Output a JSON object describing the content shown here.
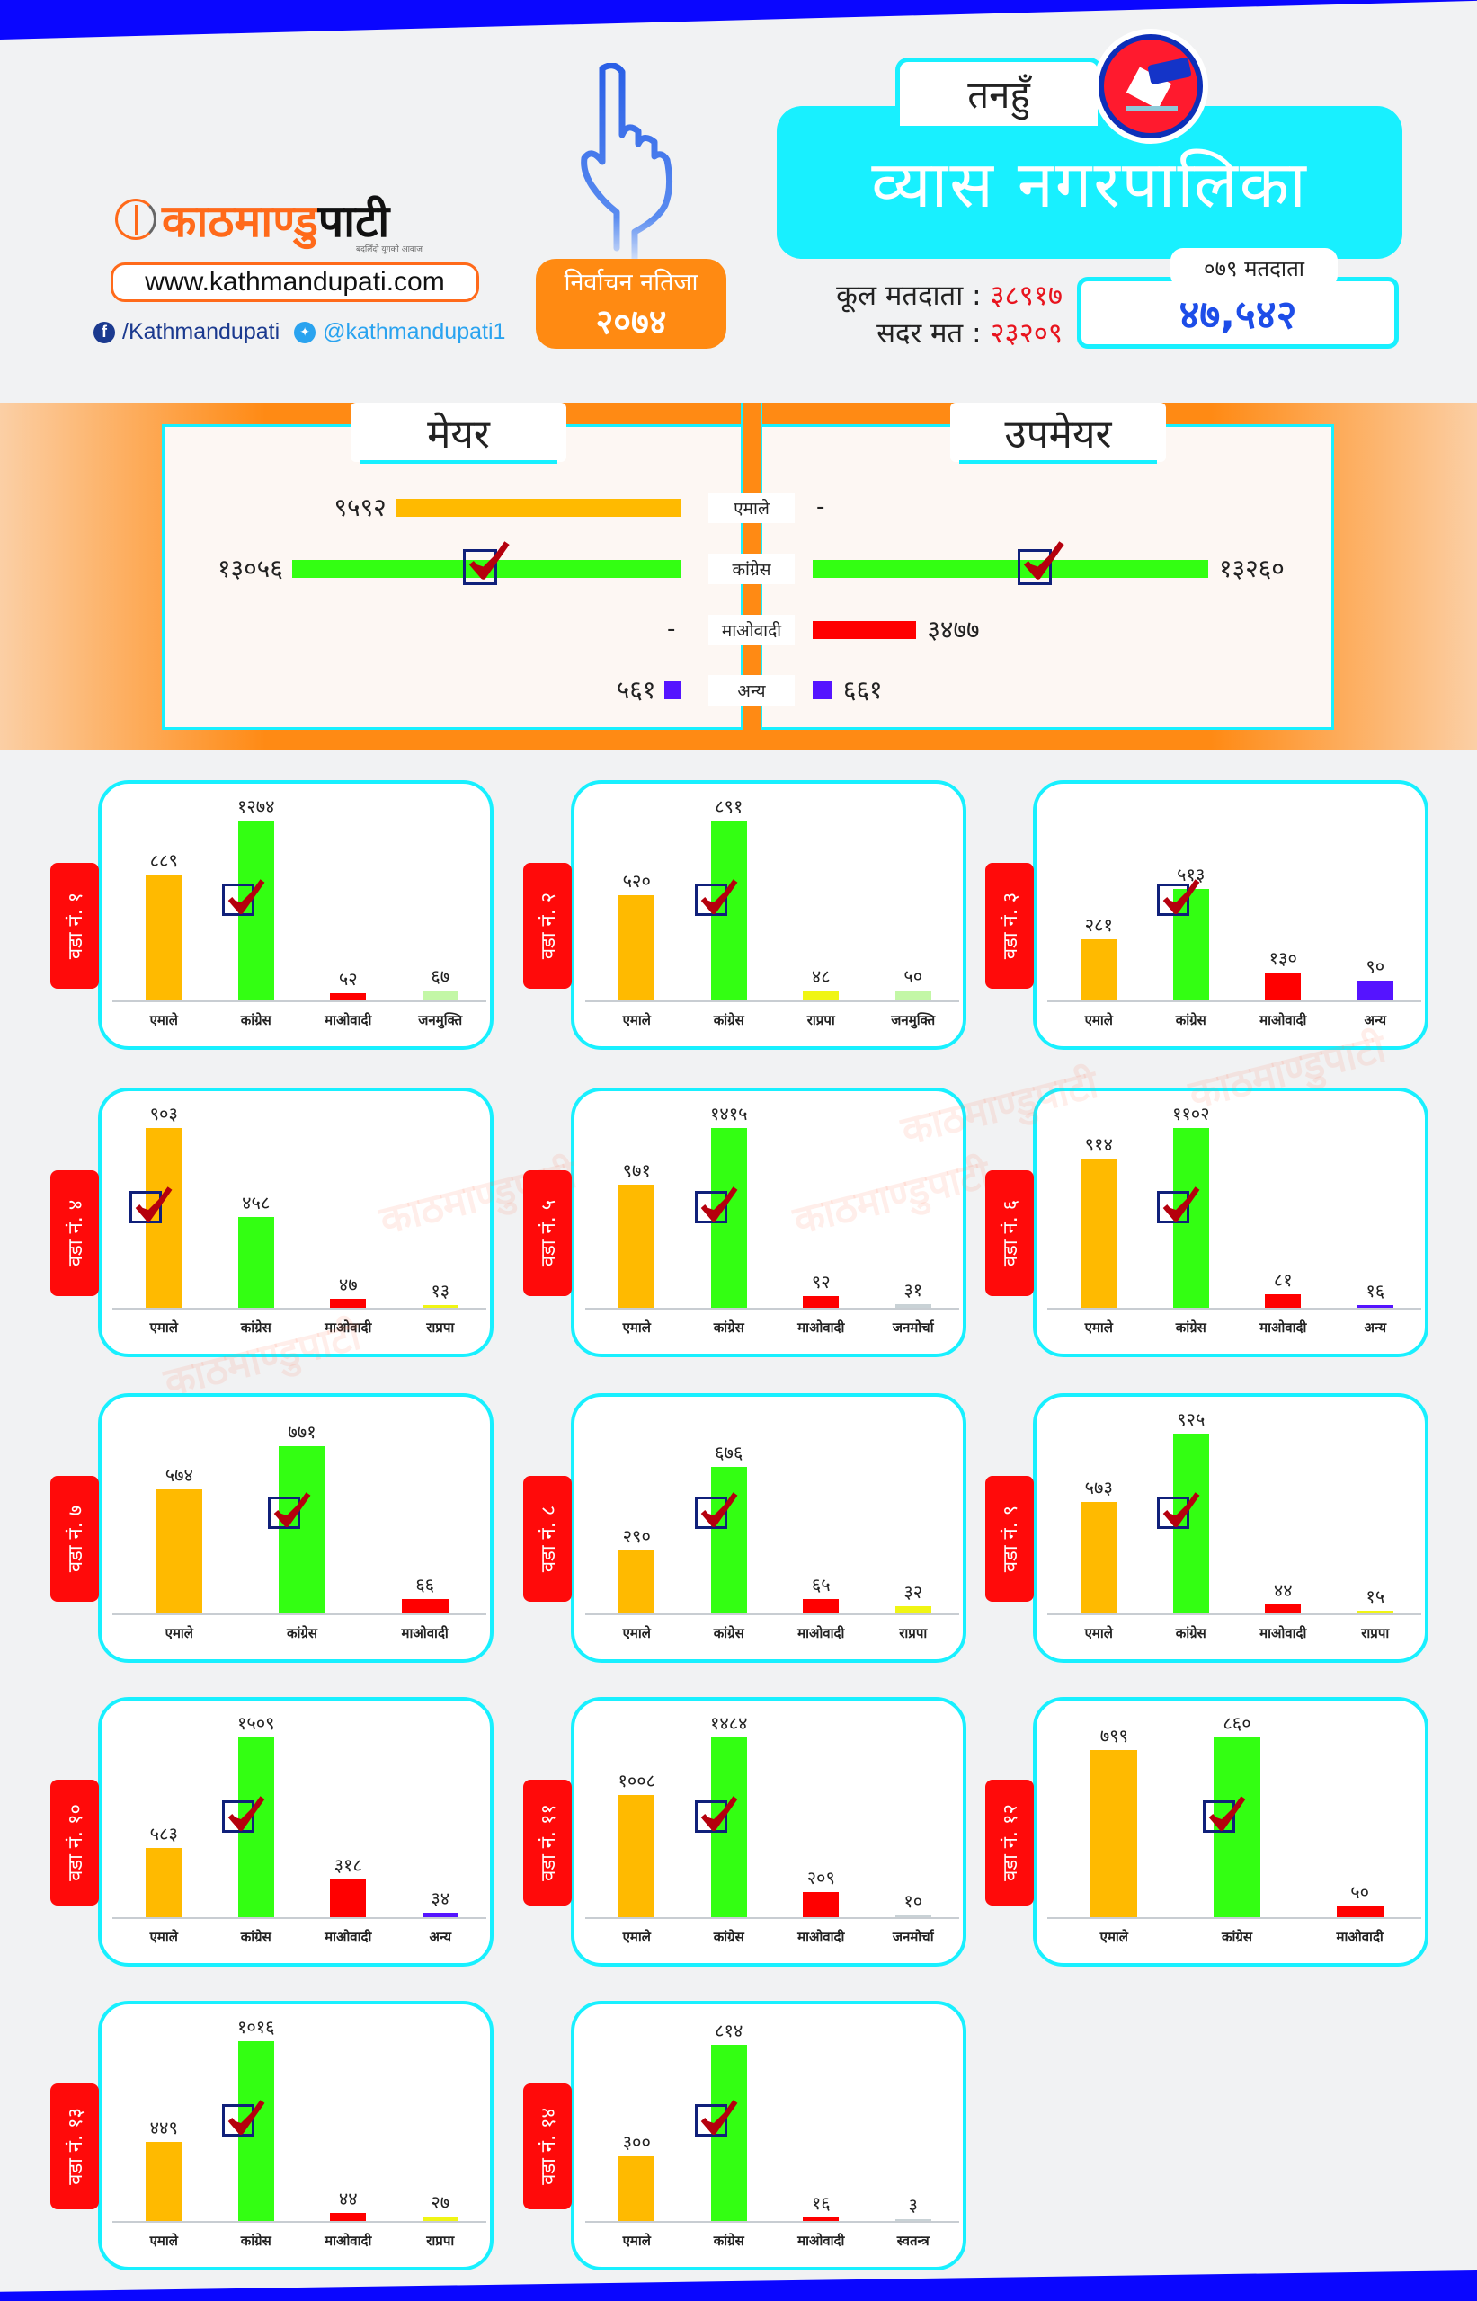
{
  "brand": {
    "logo_part1": "काठमाण्डु",
    "logo_part2": "पाटी",
    "tagline": "बदलिँदो युगको आवाज",
    "website": "www.kathmandupati.com",
    "facebook": "/Kathmandupati",
    "twitter": "@kathmandupati1",
    "watermark": "काठमाण्डुपाटी"
  },
  "result_badge": {
    "line1": "निर्वाचन नतिजा",
    "year": "२०७४"
  },
  "header": {
    "district": "तनहुँ",
    "municipality": "व्यास नगरपालिका",
    "total_voters_label": "कूल मतदाता :",
    "total_voters": "३८९१७",
    "valid_votes_label": "सदर मत :",
    "valid_votes": "२३२०९",
    "voters_079_label": "०७९ मतदाता",
    "voters_079": "४७,५४२"
  },
  "colors": {
    "uml": "#ffba00",
    "congress": "#33ff12",
    "maoist": "#ff0000",
    "other": "#5514ff",
    "rpp": "#f0f514",
    "janamukti": "#c3f7a6",
    "janamorcha": "#c9d2d6",
    "independent": "#c9d2d6"
  },
  "chart_data": [
    {
      "type": "bar",
      "orientation": "horizontal",
      "title": "मेयर",
      "categories": [
        "एमाले",
        "कांग्रेस",
        "माओवादी",
        "अन्य"
      ],
      "values": [
        9592,
        13056,
        null,
        561
      ],
      "labels": [
        "९५९२",
        "१३०५६",
        "-",
        "५६१"
      ],
      "winner": "कांग्रेस"
    },
    {
      "type": "bar",
      "orientation": "horizontal",
      "title": "उपमेयर",
      "categories": [
        "एमाले",
        "कांग्रेस",
        "माओवादी",
        "अन्य"
      ],
      "values": [
        null,
        13260,
        3477,
        661
      ],
      "labels": [
        "-",
        "१३२६०",
        "३४७७",
        "६६१"
      ],
      "winner": "कांग्रेस"
    },
    {
      "type": "bar",
      "title": "वडा नं. १",
      "categories": [
        "एमाले",
        "कांग्रेस",
        "माओवादी",
        "जनमुक्ति"
      ],
      "keys": [
        "uml",
        "congress",
        "maoist",
        "janamukti"
      ],
      "values": [
        889,
        1274,
        52,
        67
      ],
      "labels": [
        "८८९",
        "१२७४",
        "५२",
        "६७"
      ],
      "winner_index": 1
    },
    {
      "type": "bar",
      "title": "वडा नं. २",
      "categories": [
        "एमाले",
        "कांग्रेस",
        "राप्रपा",
        "जनमुक्ति"
      ],
      "keys": [
        "uml",
        "congress",
        "rpp",
        "janamukti"
      ],
      "values": [
        520,
        891,
        48,
        50
      ],
      "labels": [
        "५२०",
        "८९१",
        "४८",
        "५०"
      ],
      "winner_index": 1
    },
    {
      "type": "bar",
      "title": "वडा नं. ३",
      "categories": [
        "एमाले",
        "कांग्रेस",
        "माओवादी",
        "अन्य"
      ],
      "keys": [
        "uml",
        "congress",
        "maoist",
        "other"
      ],
      "values": [
        281,
        513,
        130,
        90
      ],
      "labels": [
        "२८१",
        "५१३",
        "१३०",
        "९०"
      ],
      "winner_index": 1
    },
    {
      "type": "bar",
      "title": "वडा नं. ४",
      "categories": [
        "एमाले",
        "कांग्रेस",
        "माओवादी",
        "राप्रपा"
      ],
      "keys": [
        "uml",
        "congress",
        "maoist",
        "rpp"
      ],
      "values": [
        903,
        458,
        47,
        13
      ],
      "labels": [
        "९०३",
        "४५८",
        "४७",
        "१३"
      ],
      "winner_index": 0
    },
    {
      "type": "bar",
      "title": "वडा नं. ५",
      "categories": [
        "एमाले",
        "कांग्रेस",
        "माओवादी",
        "जनमोर्चा"
      ],
      "keys": [
        "uml",
        "congress",
        "maoist",
        "janamorcha"
      ],
      "values": [
        971,
        1415,
        92,
        31
      ],
      "labels": [
        "९७१",
        "१४१५",
        "९२",
        "३१"
      ],
      "winner_index": 1
    },
    {
      "type": "bar",
      "title": "वडा नं. ६",
      "categories": [
        "एमाले",
        "कांग्रेस",
        "माओवादी",
        "अन्य"
      ],
      "keys": [
        "uml",
        "congress",
        "maoist",
        "other"
      ],
      "values": [
        914,
        1102,
        81,
        16
      ],
      "labels": [
        "९१४",
        "११०२",
        "८१",
        "१६"
      ],
      "winner_index": 1
    },
    {
      "type": "bar",
      "title": "वडा नं. ७",
      "categories": [
        "एमाले",
        "कांग्रेस",
        "माओवादी"
      ],
      "keys": [
        "uml",
        "congress",
        "maoist"
      ],
      "values": [
        574,
        771,
        66
      ],
      "labels": [
        "५७४",
        "७७१",
        "६६"
      ],
      "winner_index": 1
    },
    {
      "type": "bar",
      "title": "वडा नं. ८",
      "categories": [
        "एमाले",
        "कांग्रेस",
        "माओवादी",
        "राप्रपा"
      ],
      "keys": [
        "uml",
        "congress",
        "maoist",
        "rpp"
      ],
      "values": [
        290,
        676,
        65,
        32
      ],
      "labels": [
        "२९०",
        "६७६",
        "६५",
        "३२"
      ],
      "winner_index": 1
    },
    {
      "type": "bar",
      "title": "वडा नं. ९",
      "categories": [
        "एमाले",
        "कांग्रेस",
        "माओवादी",
        "राप्रपा"
      ],
      "keys": [
        "uml",
        "congress",
        "maoist",
        "rpp"
      ],
      "values": [
        573,
        925,
        44,
        15
      ],
      "labels": [
        "५७३",
        "९२५",
        "४४",
        "१५"
      ],
      "winner_index": 1
    },
    {
      "type": "bar",
      "title": "वडा नं. १०",
      "categories": [
        "एमाले",
        "कांग्रेस",
        "माओवादी",
        "अन्य"
      ],
      "keys": [
        "uml",
        "congress",
        "maoist",
        "other"
      ],
      "values": [
        583,
        1509,
        318,
        34
      ],
      "labels": [
        "५८३",
        "१५०९",
        "३१८",
        "३४"
      ],
      "winner_index": 1
    },
    {
      "type": "bar",
      "title": "वडा नं. ११",
      "categories": [
        "एमाले",
        "कांग्रेस",
        "माओवादी",
        "जनमोर्चा"
      ],
      "keys": [
        "uml",
        "congress",
        "maoist",
        "janamorcha"
      ],
      "values": [
        1008,
        1484,
        209,
        10
      ],
      "labels": [
        "१००८",
        "१४८४",
        "२०९",
        "१०"
      ],
      "winner_index": 1
    },
    {
      "type": "bar",
      "title": "वडा नं. १२",
      "categories": [
        "एमाले",
        "कांग्रेस",
        "माओवादी"
      ],
      "keys": [
        "uml",
        "congress",
        "maoist"
      ],
      "values": [
        799,
        860,
        50
      ],
      "labels": [
        "७९९",
        "८६०",
        "५०"
      ],
      "winner_index": 1
    },
    {
      "type": "bar",
      "title": "वडा नं. १३",
      "categories": [
        "एमाले",
        "कांग्रेस",
        "माओवादी",
        "राप्रपा"
      ],
      "keys": [
        "uml",
        "congress",
        "maoist",
        "rpp"
      ],
      "values": [
        449,
        1016,
        44,
        27
      ],
      "labels": [
        "४४९",
        "१०१६",
        "४४",
        "२७"
      ],
      "winner_index": 1
    },
    {
      "type": "bar",
      "title": "वडा नं. १४",
      "categories": [
        "एमाले",
        "कांग्रेस",
        "माओवादी",
        "स्वतन्त्र"
      ],
      "keys": [
        "uml",
        "congress",
        "maoist",
        "independent"
      ],
      "values": [
        300,
        814,
        16,
        3
      ],
      "labels": [
        "३००",
        "८१४",
        "१६",
        "३"
      ],
      "winner_index": 1
    }
  ]
}
